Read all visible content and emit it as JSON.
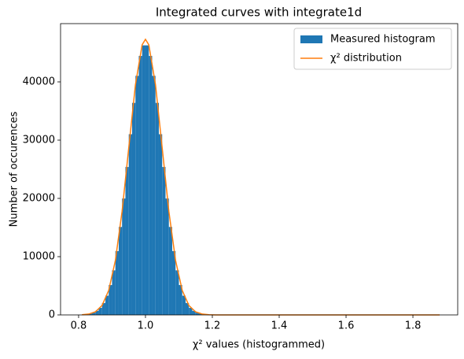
{
  "chart_data": {
    "type": "histogram",
    "title": "Integrated curves with integrate1d",
    "xlabel": "χ² values (histogrammed)",
    "ylabel": "Number of occurences",
    "xlim": [
      0.746,
      1.934
    ],
    "ylim": [
      0,
      50000
    ],
    "xticks": [
      0.8,
      {
        "value": 1,
        "label": "1.0"
      },
      1.2,
      1.4,
      1.6,
      1.8
    ],
    "yticks": [
      0,
      10000,
      20000,
      30000,
      40000
    ],
    "legend": "upper right",
    "series": [
      {
        "name": "Measured histogram",
        "type": "histogram",
        "color": "#1f77b4",
        "bins": [
          0.81,
          0.82,
          0.83,
          0.84,
          0.85,
          0.86,
          0.87,
          0.88,
          0.89,
          0.9,
          0.91,
          0.92,
          0.93,
          0.94,
          0.95,
          0.96,
          0.97,
          0.98,
          0.99,
          1.0,
          1.01,
          1.02,
          1.03,
          1.04,
          1.05,
          1.06,
          1.07,
          1.08,
          1.09,
          1.1,
          1.11,
          1.12,
          1.13,
          1.14,
          1.15,
          1.16,
          1.17,
          1.18,
          1.19,
          1.2,
          1.21,
          1.22,
          1.23,
          1.24,
          1.25,
          1.26,
          1.27,
          1.28,
          1.29,
          1.3,
          1.31,
          1.32,
          1.33,
          1.34,
          1.35,
          1.36,
          1.37,
          1.38,
          1.39,
          1.4,
          1.41,
          1.42,
          1.43,
          1.44,
          1.45,
          1.46,
          1.47,
          1.48,
          1.49,
          1.5,
          1.51,
          1.52,
          1.53,
          1.54,
          1.55,
          1.56,
          1.57,
          1.58,
          1.59,
          1.6,
          1.61,
          1.62,
          1.63,
          1.64,
          1.65,
          1.66,
          1.67,
          1.68,
          1.69,
          1.7,
          1.71,
          1.72,
          1.73,
          1.74,
          1.75,
          1.76,
          1.77,
          1.78,
          1.79,
          1.8,
          1.81,
          1.82,
          1.83,
          1.84,
          1.85,
          1.86,
          1.87,
          1.88
        ],
        "values": [
          49,
          102,
          201,
          381,
          694,
          1215,
          2042,
          3300,
          5127,
          7650,
          10960,
          15100,
          19977,
          25394,
          31016,
          36396,
          41036,
          44454,
          46268,
          46268,
          44454,
          41036,
          36396,
          31016,
          25394,
          19977,
          15100,
          10960,
          7650,
          5127,
          3300,
          2042,
          1215,
          694,
          381,
          201,
          102,
          49,
          22,
          10,
          4,
          2,
          1,
          0,
          0,
          0,
          0,
          0,
          0,
          0,
          0,
          0,
          0,
          0,
          0,
          0,
          0,
          0,
          0,
          0,
          0,
          0,
          0,
          0,
          0,
          0,
          0,
          0,
          0,
          0,
          0,
          0,
          0,
          0,
          0,
          0,
          0,
          0,
          0,
          0,
          0,
          0,
          0,
          0,
          0,
          0,
          0,
          0,
          0,
          0,
          0,
          0,
          0,
          0,
          0,
          0,
          0,
          0,
          0,
          0,
          0,
          0,
          0,
          0,
          0,
          0,
          0
        ]
      },
      {
        "name": "χ² distribution",
        "type": "line",
        "color": "#ff7f0e",
        "x": [
          0.81,
          0.83,
          0.85,
          0.87,
          0.89,
          0.91,
          0.93,
          0.95,
          0.97,
          0.99,
          1.0,
          1.01,
          1.03,
          1.05,
          1.07,
          1.09,
          1.11,
          1.13,
          1.15,
          1.17,
          1.19,
          1.21,
          1.25,
          1.3,
          1.4,
          1.5,
          1.6,
          1.7,
          1.8,
          1.88
        ],
        "values": [
          35,
          146,
          525,
          1610,
          4207,
          9360,
          17753,
          28690,
          39510,
          46363,
          47300,
          46363,
          39510,
          28690,
          17753,
          9360,
          4207,
          1610,
          525,
          146,
          35,
          7,
          0,
          0,
          0,
          0,
          0,
          0,
          0,
          0
        ]
      }
    ]
  }
}
